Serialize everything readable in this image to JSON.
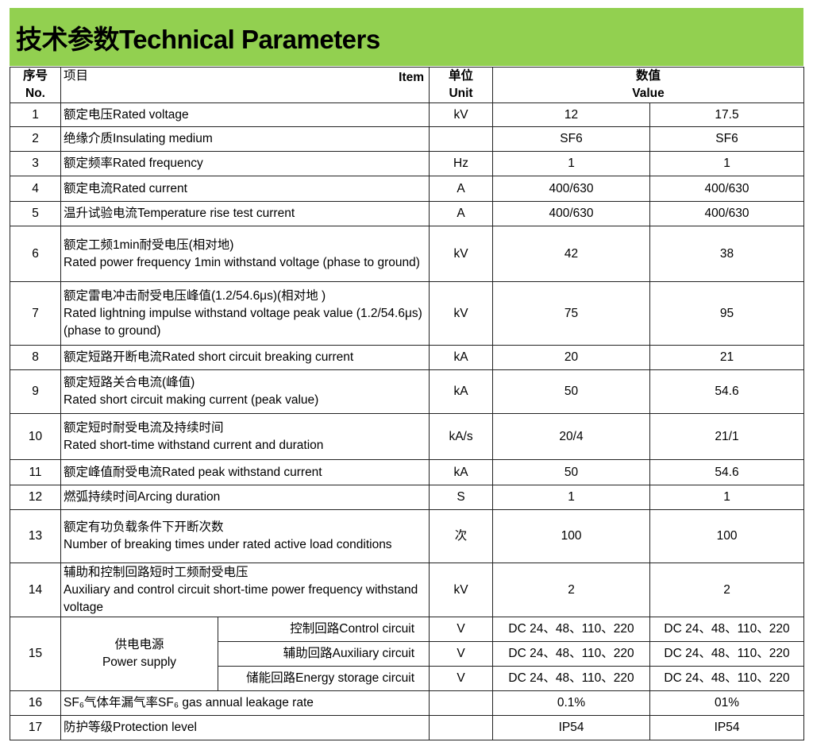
{
  "title": "技术参数Technical Parameters",
  "header": {
    "no_cn": "序号",
    "no_en": "No.",
    "item_cn": "项目",
    "item_en": "Item",
    "unit_cn": "单位",
    "unit_en": "Unit",
    "value_cn": "数值",
    "value_en": "Value"
  },
  "rows": [
    {
      "no": "1",
      "item": "额定电压Rated voltage",
      "unit": "kV",
      "v1": "12",
      "v2": "17.5"
    },
    {
      "no": "2",
      "item": "绝缘介质Insulating medium",
      "unit": "",
      "v1": "SF6",
      "v2": "SF6"
    },
    {
      "no": "3",
      "item": "额定频率Rated frequency",
      "unit": "Hz",
      "v1": "1",
      "v2": "1"
    },
    {
      "no": "4",
      "item": "额定电流Rated current",
      "unit": "A",
      "v1": "400/630",
      "v2": "400/630"
    },
    {
      "no": "5",
      "item": "温升试验电流Temperature rise test current",
      "unit": "A",
      "v1": "400/630",
      "v2": "400/630"
    },
    {
      "no": "6",
      "item": "额定工频1min耐受电压(相对地)",
      "item_en": "Rated power frequency 1min withstand voltage (phase to ground)",
      "unit": "kV",
      "v1": "42",
      "v2": "38"
    },
    {
      "no": "7",
      "item": "额定雷电冲击耐受电压峰值(1.2/54.6μs)(相对地 )",
      "item_en": "Rated lightning impulse withstand voltage peak value (1.2/54.6μs) (phase to ground)",
      "unit": "kV",
      "v1": "75",
      "v2": "95"
    },
    {
      "no": "8",
      "item": "额定短路开断电流Rated short circuit breaking current",
      "unit": "kA",
      "v1": "20",
      "v2": "21"
    },
    {
      "no": "9",
      "item": "额定短路关合电流(峰值)",
      "item_en": "Rated short circuit making current (peak value)",
      "unit": "kA",
      "v1": "50",
      "v2": "54.6"
    },
    {
      "no": "10",
      "item": "额定短时耐受电流及持续时间",
      "item_en": "Rated short-time withstand current and duration",
      "unit": "kA/s",
      "v1": "20/4",
      "v2": "21/1"
    },
    {
      "no": "11",
      "item": "额定峰值耐受电流Rated peak withstand current",
      "unit": "kA",
      "v1": "50",
      "v2": "54.6"
    },
    {
      "no": "12",
      "item": "燃弧持续时间Arcing duration",
      "unit": "S",
      "v1": "1",
      "v2": "1"
    },
    {
      "no": "13",
      "item": "额定有功负载条件下开断次数",
      "item_en": "Number of breaking times under rated active load conditions",
      "unit": "次",
      "v1": "100",
      "v2": "100"
    },
    {
      "no": "14",
      "item": "辅助和控制回路短时工频耐受电压",
      "item_en": "Auxiliary and control circuit short-time power frequency withstand voltage",
      "unit": "kV",
      "v1": "2",
      "v2": "2"
    }
  ],
  "power": {
    "no": "15",
    "item_cn": "供电电源",
    "item_en": "Power supply",
    "subs": [
      {
        "label": "控制回路Control circuit",
        "unit": "V",
        "v1": "DC 24、48、110、220",
        "v2": "DC 24、48、110、220"
      },
      {
        "label": "辅助回路Auxiliary circuit",
        "unit": "V",
        "v1": "DC 24、48、110、220",
        "v2": "DC 24、48、110、220"
      },
      {
        "label": "储能回路Energy storage circuit",
        "unit": "V",
        "v1": "DC 24、48、110、220",
        "v2": "DC 24、48、110、220"
      }
    ]
  },
  "tail": [
    {
      "no": "16",
      "item": "SF₆气体年漏气率SF₆ gas annual leakage rate",
      "unit": "",
      "v1": "0.1%",
      "v2": "01%"
    },
    {
      "no": "17",
      "item": "防护等级Protection level",
      "unit": "",
      "v1": "IP54",
      "v2": "IP54"
    }
  ]
}
